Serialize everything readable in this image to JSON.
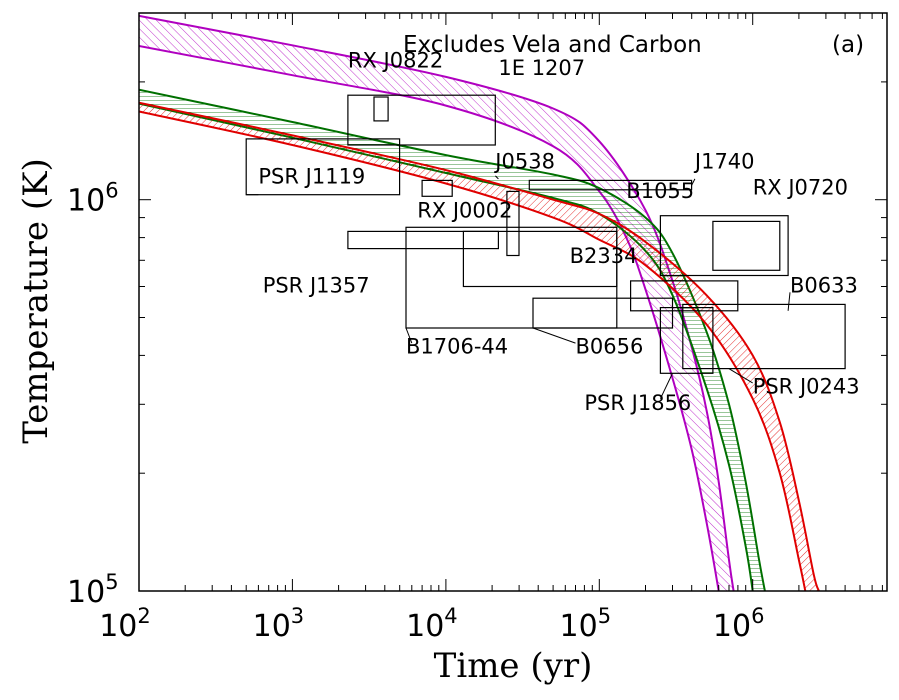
{
  "chart_data": {
    "type": "line",
    "title": "Excludes Vela and Carbon",
    "panel": "(a)",
    "xlabel": "Time (yr)",
    "ylabel": "Temperature (K)",
    "xscale": "log",
    "yscale": "log",
    "xlim": [
      100,
      7500000
    ],
    "ylim": [
      100000,
      3000000
    ],
    "x_ticks": [
      {
        "value": 100,
        "base": "10",
        "exp": "2"
      },
      {
        "value": 1000,
        "base": "10",
        "exp": "3"
      },
      {
        "value": 10000,
        "base": "10",
        "exp": "4"
      },
      {
        "value": 100000,
        "base": "10",
        "exp": "5"
      },
      {
        "value": 1000000,
        "base": "10",
        "exp": "6"
      }
    ],
    "y_ticks": [
      {
        "value": 100000,
        "base": "10",
        "exp": "5"
      },
      {
        "value": 1000000,
        "base": "10",
        "exp": "6"
      }
    ],
    "bands": [
      {
        "name": "purple",
        "color": "#b000c0",
        "hatch": "purple-hatch",
        "fill_between": true,
        "upper": [
          [
            100,
            2950000
          ],
          [
            1000,
            2480000
          ],
          [
            10000,
            2060000
          ],
          [
            50000,
            1710000
          ],
          [
            100000,
            1410000
          ],
          [
            200000,
            940000
          ],
          [
            300000,
            620000
          ],
          [
            400000,
            420000
          ],
          [
            500000,
            290000
          ],
          [
            600000,
            190000
          ],
          [
            700000,
            120000
          ],
          [
            750000,
            100000
          ]
        ],
        "lower": [
          [
            100,
            2470000
          ],
          [
            1000,
            2080000
          ],
          [
            10000,
            1740000
          ],
          [
            50000,
            1370000
          ],
          [
            100000,
            1050000
          ],
          [
            150000,
            800000
          ],
          [
            200000,
            590000
          ],
          [
            300000,
            350000
          ],
          [
            400000,
            230000
          ],
          [
            500000,
            150000
          ],
          [
            600000,
            100000
          ]
        ]
      },
      {
        "name": "green",
        "color": "#007000",
        "hatch": "green-hatch",
        "fill_between": true,
        "upper": [
          [
            100,
            1910000
          ],
          [
            1000,
            1580000
          ],
          [
            10000,
            1300000
          ],
          [
            50000,
            1160000
          ],
          [
            100000,
            1070000
          ],
          [
            200000,
            900000
          ],
          [
            300000,
            730000
          ],
          [
            500000,
            460000
          ],
          [
            700000,
            300000
          ],
          [
            900000,
            190000
          ],
          [
            1100000,
            120000
          ],
          [
            1200000,
            100000
          ]
        ],
        "lower": [
          [
            100,
            1760000
          ],
          [
            1000,
            1440000
          ],
          [
            10000,
            1170000
          ],
          [
            50000,
            1010000
          ],
          [
            100000,
            920000
          ],
          [
            200000,
            740000
          ],
          [
            300000,
            570000
          ],
          [
            500000,
            330000
          ],
          [
            700000,
            210000
          ],
          [
            900000,
            130000
          ],
          [
            1000000,
            100000
          ]
        ]
      },
      {
        "name": "red",
        "color": "#e00000",
        "hatch": "red-hatch",
        "fill_between": true,
        "upper": [
          [
            100,
            1770000
          ],
          [
            1000,
            1460000
          ],
          [
            10000,
            1190000
          ],
          [
            50000,
            1000000
          ],
          [
            100000,
            920000
          ],
          [
            200000,
            780000
          ],
          [
            500000,
            570000
          ],
          [
            1000000,
            400000
          ],
          [
            1500000,
            270000
          ],
          [
            2000000,
            170000
          ],
          [
            2500000,
            110000
          ],
          [
            2700000,
            100000
          ]
        ],
        "lower": [
          [
            100,
            1680000
          ],
          [
            1000,
            1380000
          ],
          [
            10000,
            1100000
          ],
          [
            50000,
            900000
          ],
          [
            100000,
            790000
          ],
          [
            200000,
            680000
          ],
          [
            500000,
            480000
          ],
          [
            1000000,
            310000
          ],
          [
            1500000,
            200000
          ],
          [
            2000000,
            120000
          ],
          [
            2200000,
            100000
          ]
        ]
      }
    ],
    "pulsars": [
      {
        "name": "RX J0822",
        "tmin": 3400,
        "tmax": 4200,
        "Tmin": 1590000,
        "Tmax": 1830000
      },
      {
        "name": "1E 1207",
        "tmin": 2300,
        "tmax": 21000,
        "Tmin": 1380000,
        "Tmax": 1850000
      },
      {
        "name": "PSR J1119",
        "tmin": 500,
        "tmax": 5000,
        "Tmin": 1030000,
        "Tmax": 1430000
      },
      {
        "name": "J0538",
        "tmin": 7000,
        "tmax": 11000,
        "Tmin": 1020000,
        "Tmax": 1120000
      },
      {
        "name": "J1740",
        "tmin": 35000,
        "tmax": 400000,
        "Tmin": 1060000,
        "Tmax": 1120000
      },
      {
        "name": "B1055",
        "tmin": 25000,
        "tmax": 30000,
        "Tmin": 720000,
        "Tmax": 1050000
      },
      {
        "name": "RX J0002",
        "tmin": 2300,
        "tmax": 22000,
        "Tmin": 750000,
        "Tmax": 830000
      },
      {
        "name": "RX J0720",
        "tmin": 250000,
        "tmax": 1700000,
        "Tmin": 640000,
        "Tmax": 910000
      },
      {
        "name": "RX J0720 inner",
        "tmin": 550000,
        "tmax": 1500000,
        "Tmin": 660000,
        "Tmax": 880000
      },
      {
        "name": "PSR J1357",
        "tmin": 5500,
        "tmax": 130000,
        "Tmin": 470000,
        "Tmax": 850000
      },
      {
        "name": "B2334",
        "tmin": 13000,
        "tmax": 130000,
        "Tmin": 600000,
        "Tmax": 830000
      },
      {
        "name": "B0633",
        "tmin": 160000,
        "tmax": 800000,
        "Tmin": 520000,
        "Tmax": 620000
      },
      {
        "name": "B0656",
        "tmin": 37000,
        "tmax": 300000,
        "Tmin": 470000,
        "Tmax": 560000
      },
      {
        "name": "PSR J1856",
        "tmin": 250000,
        "tmax": 550000,
        "Tmin": 360000,
        "Tmax": 530000
      },
      {
        "name": "PSR J0243",
        "tmin": 350000,
        "tmax": 4000000,
        "Tmin": 370000,
        "Tmax": 540000
      }
    ],
    "labels": [
      {
        "text": "RX J0822",
        "x": 2300,
        "y": 2180000
      },
      {
        "text": "1E 1207",
        "x": 22000,
        "y": 2080000
      },
      {
        "text": "PSR J1119",
        "x": 600,
        "y": 1100000
      },
      {
        "text": "J0538",
        "x": 21000,
        "y": 1200000
      },
      {
        "text": "J1740",
        "x": 420000,
        "y": 1200000
      },
      {
        "text": "B1055",
        "x": 150000,
        "y": 1010000
      },
      {
        "text": "RX J0720",
        "x": 1000000,
        "y": 1030000
      },
      {
        "text": "RX J0002",
        "x": 6500,
        "y": 900000
      },
      {
        "text": "B2334",
        "x": 64000,
        "y": 690000
      },
      {
        "text": "PSR J1357",
        "x": 640,
        "y": 580000
      },
      {
        "text": "B0633",
        "x": 1750000,
        "y": 580000
      },
      {
        "text": "B1706-44",
        "x": 5500,
        "y": 405000
      },
      {
        "text": "B0656",
        "x": 70000,
        "y": 405000
      },
      {
        "text": "PSR J1856",
        "x": 80000,
        "y": 290000
      },
      {
        "text": "PSR J0243",
        "x": 1000000,
        "y": 320000
      }
    ],
    "leaders": [
      {
        "from": [
          500,
          1030000
        ],
        "to": [
          600,
          1030000
        ]
      },
      {
        "from": [
          5500,
          470000
        ],
        "to": [
          6000,
          430000
        ]
      },
      {
        "from": [
          37000,
          470000
        ],
        "to": [
          70000,
          430000
        ]
      },
      {
        "from": [
          300000,
          360000
        ],
        "to": [
          250000,
          310000
        ]
      },
      {
        "from": [
          1700000,
          520000
        ],
        "to": [
          1750000,
          580000
        ]
      },
      {
        "from": [
          700000,
          370000
        ],
        "to": [
          1000000,
          340000
        ]
      },
      {
        "from": [
          400000,
          1090000
        ],
        "to": [
          420000,
          1130000
        ]
      },
      {
        "from": [
          22000,
          1130000
        ],
        "to": [
          21000,
          1150000
        ]
      }
    ]
  }
}
